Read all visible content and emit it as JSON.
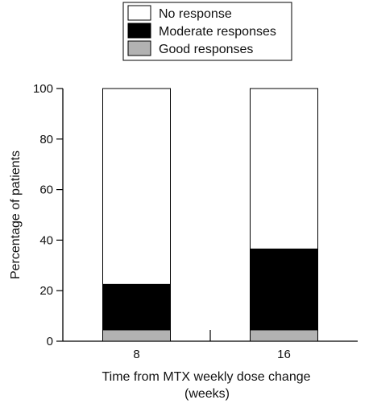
{
  "chart_data": {
    "type": "bar",
    "stacked": true,
    "title": "",
    "categories": [
      "8",
      "16"
    ],
    "series": [
      {
        "name": "Good responses",
        "values": [
          4.5,
          4.5
        ],
        "color": "#b2b2b2"
      },
      {
        "name": "Moderate responses",
        "values": [
          18,
          32
        ],
        "color": "#000000"
      },
      {
        "name": "No response",
        "values": [
          77.5,
          63.5
        ],
        "color": "#ffffff"
      }
    ],
    "xlabel_line1": "Time from MTX weekly dose change",
    "xlabel_line2": "(weeks)",
    "ylabel": "Percentage of patients",
    "ylim": [
      0,
      100
    ],
    "yticks": [
      "0",
      "20",
      "40",
      "60",
      "80",
      "100"
    ],
    "legend_order": [
      "No response",
      "Moderate responses",
      "Good responses"
    ],
    "legend_position": "top-center",
    "grid": false
  }
}
